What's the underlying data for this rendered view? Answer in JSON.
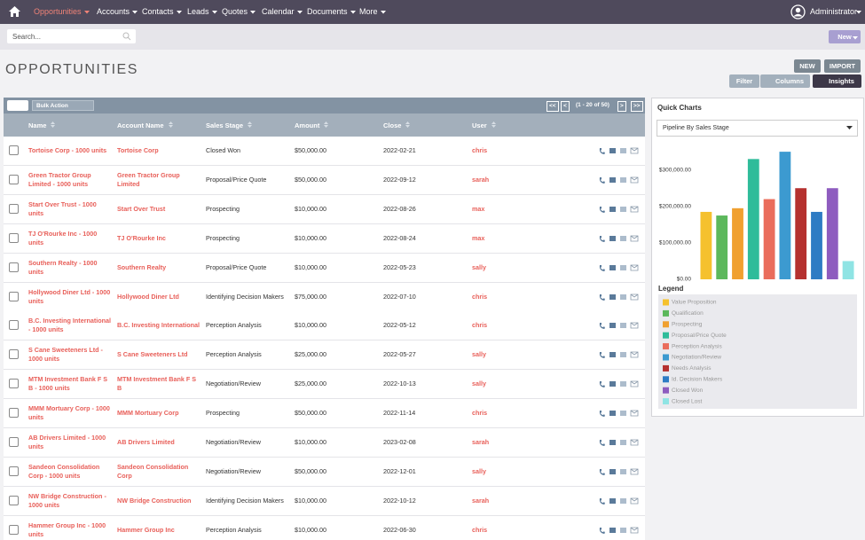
{
  "nav": {
    "items": [
      "Opportunities",
      "Accounts",
      "Contacts",
      "Leads",
      "Quotes",
      "Calendar",
      "Documents",
      "More"
    ],
    "user": "Administrator"
  },
  "search": {
    "placeholder": "Search...",
    "new_button": "New"
  },
  "header": {
    "title": "OPPORTUNITIES",
    "buttons": [
      "NEW",
      "IMPORT"
    ],
    "actions": [
      "Filter",
      "Columns",
      "Insights"
    ]
  },
  "toolbar": {
    "bulk_action": "Bulk Action",
    "first": "<<",
    "prev": "<",
    "range": "(1 - 20 of 50)",
    "next": ">",
    "last": ">>"
  },
  "table": {
    "columns": [
      "Name",
      "Account Name",
      "Sales Stage",
      "Amount",
      "Close",
      "User"
    ],
    "rows": [
      [
        "Tortoise Corp - 1000 units",
        "Tortoise Corp",
        "Closed Won",
        "$50,000.00",
        "2022-02-21",
        "chris"
      ],
      [
        "Green Tractor Group Limited - 1000 units",
        "Green Tractor Group Limited",
        "Proposal/Price Quote",
        "$50,000.00",
        "2022-09-12",
        "sarah"
      ],
      [
        "Start Over Trust - 1000 units",
        "Start Over Trust",
        "Prospecting",
        "$10,000.00",
        "2022-08-26",
        "max"
      ],
      [
        "TJ O'Rourke Inc - 1000 units",
        "TJ O'Rourke Inc",
        "Prospecting",
        "$10,000.00",
        "2022-08-24",
        "max"
      ],
      [
        "Southern Realty - 1000 units",
        "Southern Realty",
        "Proposal/Price Quote",
        "$10,000.00",
        "2022-05-23",
        "sally"
      ],
      [
        "Hollywood Diner Ltd - 1000 units",
        "Hollywood Diner Ltd",
        "Identifying Decision Makers",
        "$75,000.00",
        "2022-07-10",
        "chris"
      ],
      [
        "B.C. Investing International - 1000 units",
        "B.C. Investing International",
        "Perception Analysis",
        "$10,000.00",
        "2022-05-12",
        "chris"
      ],
      [
        "S Cane Sweeteners Ltd - 1000 units",
        "S Cane Sweeteners Ltd",
        "Perception Analysis",
        "$25,000.00",
        "2022-05-27",
        "sally"
      ],
      [
        "MTM Investment Bank F S B - 1000 units",
        "MTM Investment Bank F S B",
        "Negotiation/Review",
        "$25,000.00",
        "2022-10-13",
        "sally"
      ],
      [
        "MMM Mortuary Corp - 1000 units",
        "MMM Mortuary Corp",
        "Prospecting",
        "$50,000.00",
        "2022-11-14",
        "chris"
      ],
      [
        "AB Drivers Limited - 1000 units",
        "AB Drivers Limited",
        "Negotiation/Review",
        "$10,000.00",
        "2023-02-08",
        "sarah"
      ],
      [
        "Sandeon Consolidation Corp - 1000 units",
        "Sandeon Consolidation Corp",
        "Negotiation/Review",
        "$50,000.00",
        "2022-12-01",
        "sally"
      ],
      [
        "NW Bridge Construction - 1000 units",
        "NW Bridge Construction",
        "Identifying Decision Makers",
        "$10,000.00",
        "2022-10-12",
        "sarah"
      ],
      [
        "Hammer Group Inc - 1000 units",
        "Hammer Group Inc",
        "Perception Analysis",
        "$10,000.00",
        "2022-06-30",
        "chris"
      ]
    ]
  },
  "panel": {
    "title": "Quick Charts"
  },
  "chart_data": {
    "type": "bar",
    "title": "Pipeline By Sales Stage",
    "legend_title": "Legend",
    "categories": [
      "Value Proposition",
      "Qualification",
      "Prospecting",
      "Proposal/Price Quote",
      "Perception Analysis",
      "Negotiation/Review",
      "Needs Analysis",
      "Id. Decision Makers",
      "Closed Won",
      "Closed Lost"
    ],
    "values": [
      185000,
      175000,
      195000,
      330000,
      220000,
      350000,
      250000,
      185000,
      250000,
      50000
    ],
    "colors": [
      "#f5c12e",
      "#5cb85c",
      "#f0a030",
      "#2fbc9a",
      "#ea6d5c",
      "#3c9ad0",
      "#b5312f",
      "#2e7cc4",
      "#8e5cbf",
      "#8fe4e4"
    ],
    "ylim": [
      0,
      360000
    ],
    "yticks": [
      {
        "value": 0,
        "label": "$0.00"
      },
      {
        "value": 100000,
        "label": "$100,000.00"
      },
      {
        "value": 200000,
        "label": "$200,000.00"
      },
      {
        "value": 300000,
        "label": "$300,000.00"
      }
    ]
  }
}
